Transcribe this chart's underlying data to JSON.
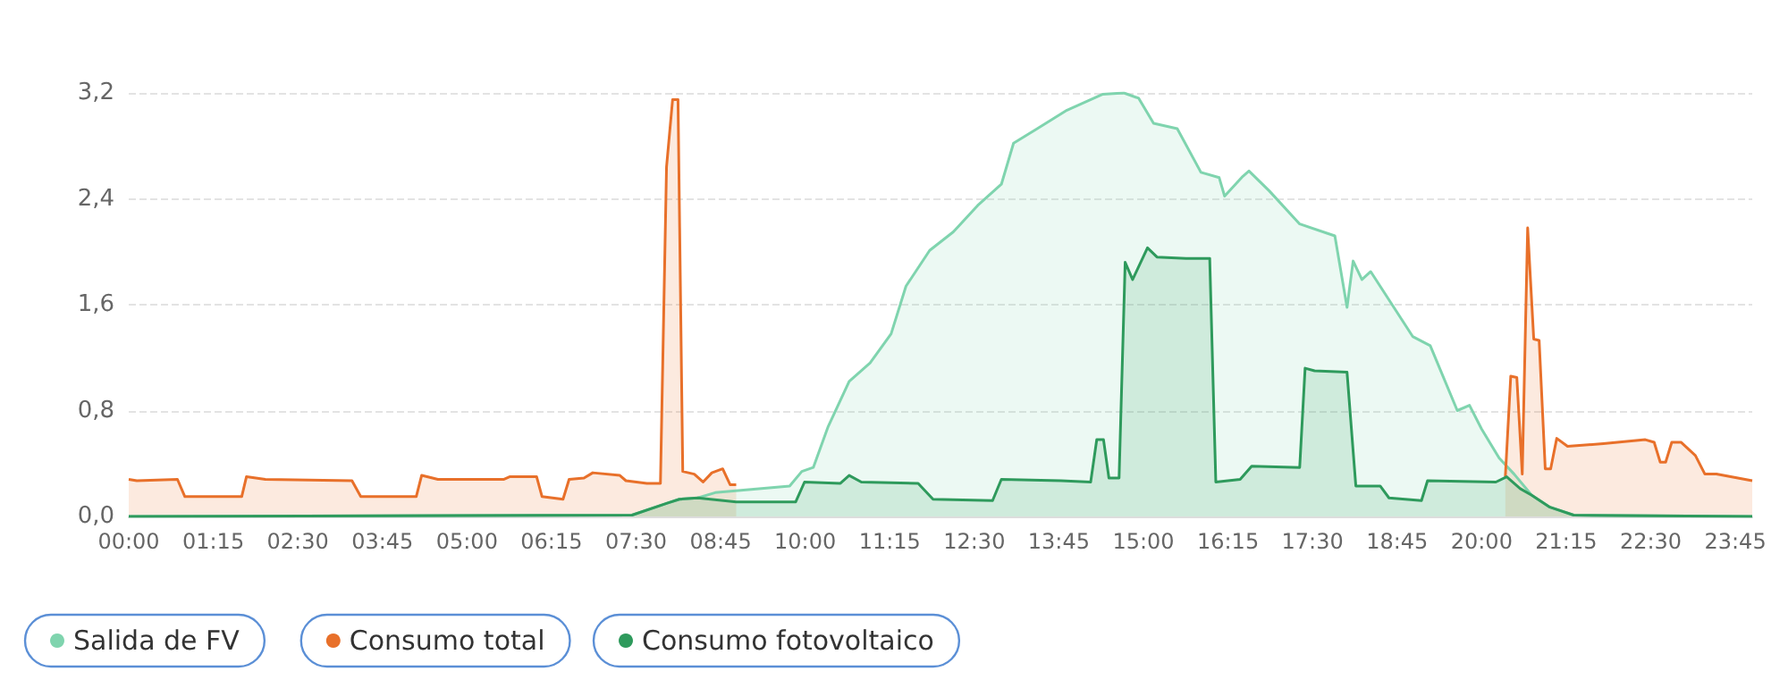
{
  "chart_data": {
    "type": "area",
    "xlim": [
      0,
      24
    ],
    "xticks": [
      {
        "value": 0,
        "label": "00:00"
      },
      {
        "value": 1.25,
        "label": "01:15"
      },
      {
        "value": 2.5,
        "label": "02:30"
      },
      {
        "value": 3.75,
        "label": "03:45"
      },
      {
        "value": 5,
        "label": "05:00"
      },
      {
        "value": 6.25,
        "label": "06:15"
      },
      {
        "value": 7.5,
        "label": "07:30"
      },
      {
        "value": 8.75,
        "label": "08:45"
      },
      {
        "value": 10,
        "label": "10:00"
      },
      {
        "value": 11.25,
        "label": "11:15"
      },
      {
        "value": 12.5,
        "label": "12:30"
      },
      {
        "value": 13.75,
        "label": "13:45"
      },
      {
        "value": 15,
        "label": "15:00"
      },
      {
        "value": 16.25,
        "label": "16:15"
      },
      {
        "value": 17.5,
        "label": "17:30"
      },
      {
        "value": 18.75,
        "label": "18:45"
      },
      {
        "value": 20,
        "label": "20:00"
      },
      {
        "value": 21.25,
        "label": "21:15"
      },
      {
        "value": 22.5,
        "label": "22:30"
      },
      {
        "value": 23.75,
        "label": "23:45"
      }
    ],
    "ylim": [
      0,
      3.2
    ],
    "yticks": [
      {
        "value": 0,
        "label": "0,0"
      },
      {
        "value": 0.8,
        "label": "0,8"
      },
      {
        "value": 1.6,
        "label": "1,6"
      },
      {
        "value": 2.4,
        "label": "2,4"
      },
      {
        "value": 3.2,
        "label": "3,2"
      }
    ],
    "grid": "y",
    "legend": "bottom left",
    "marker": "none",
    "series": [
      {
        "name": "Salida de FV",
        "color": "#7fd4ae",
        "x": [
          0,
          7.44,
          7.96,
          8.14,
          8.41,
          8.67,
          9.77,
          9.95,
          10.12,
          10.34,
          10.65,
          10.96,
          11.27,
          11.49,
          11.84,
          12.19,
          12.55,
          12.9,
          13.08,
          13.43,
          13.87,
          14.4,
          14.71,
          14.93,
          15.15,
          15.5,
          15.85,
          16.12,
          16.2,
          16.47,
          16.56,
          16.86,
          17.31,
          17.83,
          18.01,
          18.1,
          18.23,
          18.36,
          18.98,
          19.24,
          19.64,
          19.82,
          20,
          20.26,
          20.48,
          20.74,
          21.01,
          21.36,
          24
        ],
        "values": [
          0,
          0.01,
          0.1,
          0.13,
          0.14,
          0.18,
          0.23,
          0.34,
          0.37,
          0.68,
          1.02,
          1.16,
          1.38,
          1.74,
          2.01,
          2.15,
          2.35,
          2.51,
          2.82,
          2.93,
          3.07,
          3.19,
          3.2,
          3.16,
          2.97,
          2.93,
          2.6,
          2.56,
          2.42,
          2.57,
          2.61,
          2.46,
          2.21,
          2.12,
          1.58,
          1.93,
          1.79,
          1.85,
          1.36,
          1.29,
          0.8,
          0.84,
          0.66,
          0.44,
          0.32,
          0.16,
          0.07,
          0.01,
          0
        ]
      },
      {
        "name": "Consumo total",
        "color": "#e8702a",
        "x": [
          0,
          0.12,
          0.72,
          0.83,
          1.67,
          1.74,
          2.02,
          3.3,
          3.43,
          4.25,
          4.33,
          4.57,
          5.54,
          5.63,
          6.03,
          6.11,
          6.42,
          6.51,
          6.73,
          6.86,
          7.26,
          7.35,
          7.66,
          7.86,
          7.95,
          8.04,
          8.12,
          8.19,
          8.36,
          8.49,
          8.62,
          8.78,
          8.89,
          8.98,
          9.5,
          20.35,
          20.43,
          20.52,
          20.6,
          20.68,
          20.77,
          20.85,
          20.94,
          21.02,
          21.11,
          21.27,
          21.8,
          22.42,
          22.55,
          22.64,
          22.72,
          22.81,
          22.95,
          23.16,
          23.3,
          23.47,
          24
        ],
        "values": [
          0.28,
          0.27,
          0.28,
          0.15,
          0.15,
          0.3,
          0.28,
          0.27,
          0.15,
          0.15,
          0.31,
          0.28,
          0.28,
          0.3,
          0.3,
          0.15,
          0.13,
          0.28,
          0.29,
          0.33,
          0.31,
          0.27,
          0.25,
          0.25,
          2.64,
          3.15,
          3.15,
          0.34,
          0.32,
          0.26,
          0.33,
          0.36,
          0.24,
          0.24,
          null,
          0.3,
          1.06,
          1.05,
          0.32,
          2.18,
          1.34,
          1.33,
          0.36,
          0.36,
          0.59,
          0.53,
          0.55,
          0.58,
          0.56,
          0.41,
          0.41,
          0.56,
          0.56,
          0.46,
          0.32,
          0.32,
          0.27
        ]
      },
      {
        "name": "Consumo fotovoltaico",
        "color": "#2e9a5c",
        "x": [
          0,
          7.44,
          7.96,
          8.14,
          8.41,
          8.98,
          9.86,
          9.99,
          10.52,
          10.65,
          10.83,
          11.67,
          11.89,
          12.77,
          12.9,
          13.78,
          14.22,
          14.31,
          14.41,
          14.49,
          14.64,
          14.73,
          14.84,
          15.06,
          15.2,
          15.63,
          15.98,
          16.07,
          16.43,
          16.6,
          17.31,
          17.39,
          17.53,
          18.01,
          18.14,
          18.5,
          18.63,
          19.11,
          19.2,
          20.21,
          20.37,
          20.57,
          20.74,
          21.01,
          21.36,
          24
        ],
        "values": [
          0,
          0.01,
          0.1,
          0.13,
          0.14,
          0.11,
          0.11,
          0.26,
          0.25,
          0.31,
          0.26,
          0.25,
          0.13,
          0.12,
          0.28,
          0.27,
          0.26,
          0.58,
          0.58,
          0.29,
          0.29,
          1.92,
          1.79,
          2.03,
          1.96,
          1.95,
          1.95,
          0.26,
          0.28,
          0.38,
          0.37,
          1.12,
          1.1,
          1.09,
          0.23,
          0.23,
          0.14,
          0.12,
          0.27,
          0.26,
          0.3,
          0.21,
          0.16,
          0.07,
          0.01,
          0
        ]
      }
    ]
  }
}
